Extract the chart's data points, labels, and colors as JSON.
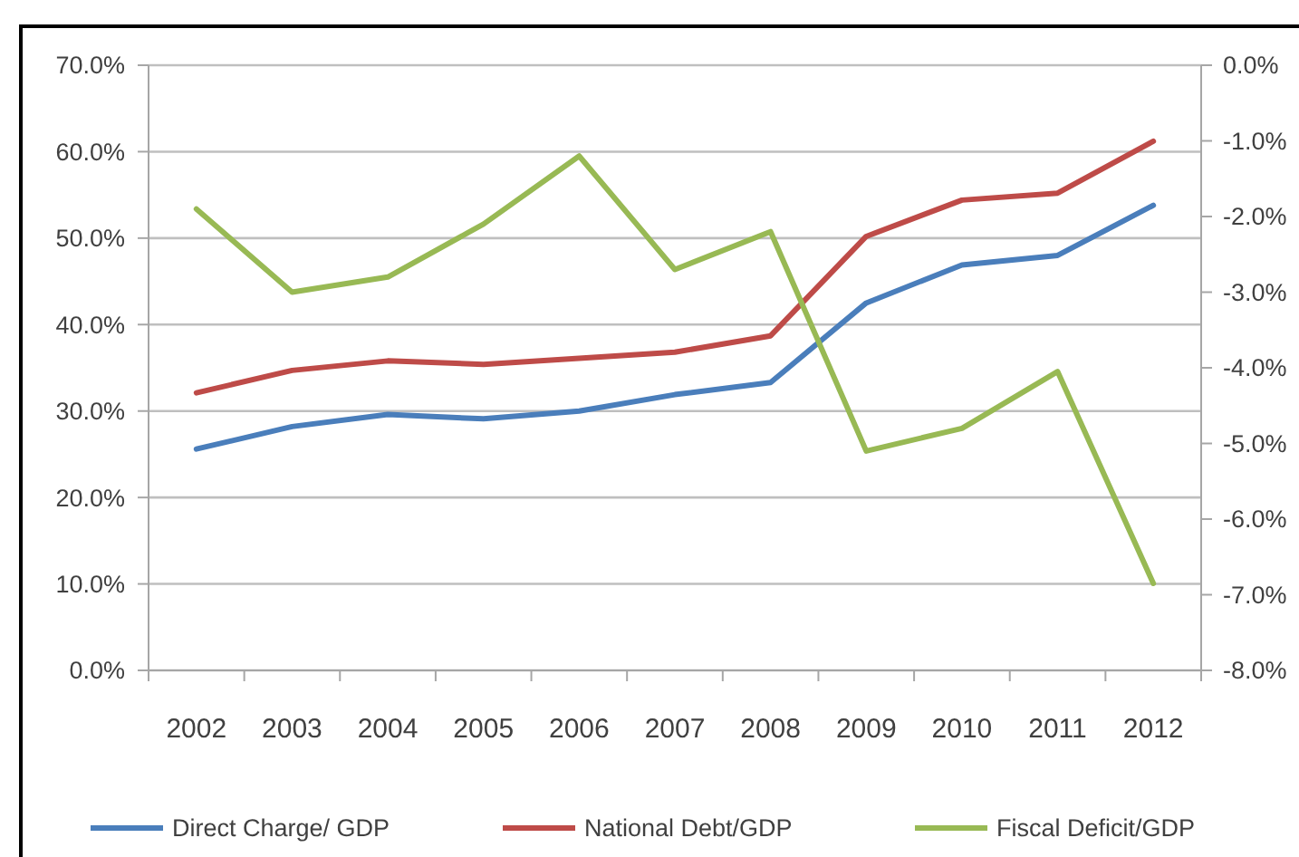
{
  "chart_data": {
    "type": "line",
    "categories": [
      "2002",
      "2003",
      "2004",
      "2005",
      "2006",
      "2007",
      "2008",
      "2009",
      "2010",
      "2011",
      "2012"
    ],
    "series": [
      {
        "name": "Direct Charge/ GDP",
        "color": "#4a7ebb",
        "values": [
          25.6,
          28.2,
          29.6,
          29.1,
          30.0,
          31.9,
          33.3,
          42.5,
          46.9,
          48.0,
          53.8
        ]
      },
      {
        "name": "National Debt/GDP",
        "color": "#be4b48",
        "values": [
          32.1,
          34.7,
          35.8,
          35.4,
          36.1,
          36.8,
          38.7,
          50.2,
          54.4,
          55.2,
          61.2
        ]
      },
      {
        "name": "Fiscal Deficit/GDP",
        "color": "#98b954",
        "axis": "y2",
        "values": [
          -1.9,
          -3.0,
          -2.8,
          -2.1,
          -1.2,
          -2.7,
          -2.2,
          -5.1,
          -4.8,
          -4.05,
          -6.85
        ]
      }
    ],
    "ylim": [
      0,
      70
    ],
    "yticks": [
      {
        "value": 0,
        "label": "0.0%"
      },
      {
        "value": 10,
        "label": "10.0%"
      },
      {
        "value": 20,
        "label": "20.0%"
      },
      {
        "value": 30,
        "label": "30.0%"
      },
      {
        "value": 40,
        "label": "40.0%"
      },
      {
        "value": 50,
        "label": "50.0%"
      },
      {
        "value": 60,
        "label": "60.0%"
      },
      {
        "value": 70,
        "label": "70.0%"
      }
    ],
    "y2lim": [
      -8,
      0
    ],
    "y2ticks": [
      {
        "value": 0,
        "label": "0.0%"
      },
      {
        "value": -1,
        "label": "-1.0%"
      },
      {
        "value": -2,
        "label": "-2.0%"
      },
      {
        "value": -3,
        "label": "-3.0%"
      },
      {
        "value": -4,
        "label": "-4.0%"
      },
      {
        "value": -5,
        "label": "-5.0%"
      },
      {
        "value": -6,
        "label": "-6.0%"
      },
      {
        "value": -7,
        "label": "-7.0%"
      },
      {
        "value": -8,
        "label": "-8.0%"
      }
    ],
    "grid": "y",
    "legend": "bottom"
  }
}
